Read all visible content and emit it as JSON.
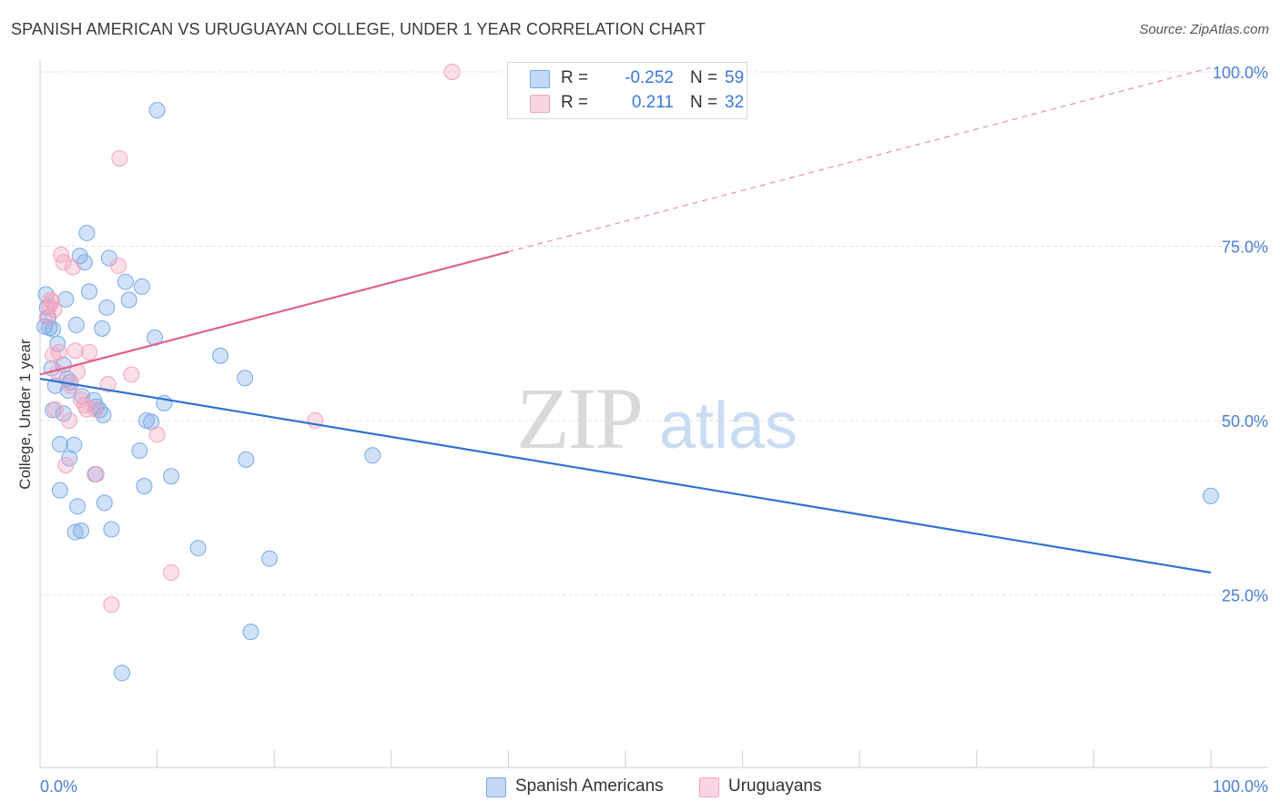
{
  "header": {
    "title": "SPANISH AMERICAN VS URUGUAYAN COLLEGE, UNDER 1 YEAR CORRELATION CHART",
    "source": "Source: ZipAtlas.com"
  },
  "watermark": {
    "zip": "ZIP",
    "atlas": "atlas"
  },
  "stats_legend": [
    {
      "r_label": "R =",
      "r_value": "-0.252",
      "n_label": "N =",
      "n_value": "59",
      "color": "#7aaae8"
    },
    {
      "r_label": "R =",
      "r_value": "0.211",
      "n_label": "N =",
      "n_value": "32",
      "color": "#f4a3bd"
    }
  ],
  "bottom_legend": [
    {
      "label": "Spanish Americans",
      "color": "#7aaae8"
    },
    {
      "label": "Uruguayans",
      "color": "#f4a3bd"
    }
  ],
  "chart_data": {
    "type": "scatter",
    "xlabel": "",
    "ylabel": "College, Under 1 year",
    "xlim": [
      0,
      100
    ],
    "ylim": [
      0,
      105
    ],
    "x_tick_labels": [
      {
        "value": 0,
        "label": "0.0%"
      },
      {
        "value": 100,
        "label": "100.0%"
      }
    ],
    "x_minor_ticks": [
      10,
      20,
      30,
      40,
      50,
      60,
      70,
      80,
      90,
      100
    ],
    "y_tick_labels": [
      {
        "value": 25,
        "label": "25.0%"
      },
      {
        "value": 50,
        "label": "50.0%"
      },
      {
        "value": 75,
        "label": "75.0%"
      },
      {
        "value": 100,
        "label": "100.0%"
      }
    ],
    "grid": true,
    "series": [
      {
        "name": "Spanish Americans",
        "color": "#7aaae8",
        "line_color": "#2e72d2",
        "r": -0.252,
        "n": 59,
        "trend": {
          "x0": 0,
          "y0": 56,
          "x1": 100,
          "y1": 28.2
        },
        "points": [
          [
            0.4,
            63.5
          ],
          [
            0.5,
            68.1
          ],
          [
            0.6,
            66.2
          ],
          [
            0.7,
            64.8
          ],
          [
            0.8,
            63.3
          ],
          [
            1.0,
            57.5
          ],
          [
            1.1,
            51.5
          ],
          [
            1.3,
            55.0
          ],
          [
            1.5,
            61.0
          ],
          [
            1.7,
            46.6
          ],
          [
            1.7,
            40.0
          ],
          [
            2.0,
            51.0
          ],
          [
            2.2,
            67.4
          ],
          [
            2.3,
            56.0
          ],
          [
            2.4,
            54.3
          ],
          [
            2.5,
            44.6
          ],
          [
            2.6,
            55.5
          ],
          [
            2.9,
            46.5
          ],
          [
            3.0,
            34.0
          ],
          [
            3.1,
            63.7
          ],
          [
            3.2,
            37.7
          ],
          [
            3.4,
            73.6
          ],
          [
            3.5,
            34.2
          ],
          [
            3.8,
            72.7
          ],
          [
            4.0,
            76.9
          ],
          [
            4.2,
            68.5
          ],
          [
            4.6,
            52.9
          ],
          [
            4.7,
            42.3
          ],
          [
            5.1,
            51.5
          ],
          [
            5.3,
            63.2
          ],
          [
            5.4,
            50.8
          ],
          [
            5.5,
            38.2
          ],
          [
            5.7,
            66.2
          ],
          [
            5.9,
            73.3
          ],
          [
            6.1,
            34.4
          ],
          [
            7.0,
            13.8
          ],
          [
            7.3,
            69.9
          ],
          [
            7.6,
            67.3
          ],
          [
            8.5,
            45.7
          ],
          [
            8.7,
            69.2
          ],
          [
            8.9,
            40.6
          ],
          [
            9.1,
            50.0
          ],
          [
            9.5,
            49.8
          ],
          [
            9.8,
            61.9
          ],
          [
            10.0,
            94.5
          ],
          [
            10.6,
            52.5
          ],
          [
            11.2,
            42.0
          ],
          [
            13.5,
            31.7
          ],
          [
            15.4,
            59.3
          ],
          [
            17.5,
            56.1
          ],
          [
            17.6,
            44.4
          ],
          [
            18.0,
            19.7
          ],
          [
            19.6,
            30.2
          ],
          [
            28.4,
            45.0
          ],
          [
            1.1,
            63.1
          ],
          [
            2.0,
            58.0
          ],
          [
            3.6,
            53.5
          ],
          [
            4.8,
            52.0
          ],
          [
            100.0,
            39.2
          ]
        ]
      },
      {
        "name": "Uruguayans",
        "color": "#f4a3bd",
        "line_color": "#e0628a",
        "r": 0.211,
        "n": 32,
        "trend": {
          "x0": 0,
          "y0": 56.6,
          "x1": 40,
          "y1": 74.2,
          "dash_x1": 100,
          "dash_y1": 100.6
        },
        "points": [
          [
            0.6,
            64.8
          ],
          [
            0.8,
            66.4
          ],
          [
            0.9,
            67.3
          ],
          [
            1.1,
            59.4
          ],
          [
            1.2,
            65.9
          ],
          [
            1.3,
            51.6
          ],
          [
            1.5,
            56.9
          ],
          [
            1.6,
            59.8
          ],
          [
            1.8,
            73.8
          ],
          [
            2.0,
            72.7
          ],
          [
            2.2,
            43.6
          ],
          [
            2.5,
            50.0
          ],
          [
            2.6,
            55.0
          ],
          [
            2.8,
            72.0
          ],
          [
            3.0,
            60.0
          ],
          [
            3.2,
            57.0
          ],
          [
            3.5,
            53.0
          ],
          [
            3.8,
            52.2
          ],
          [
            4.0,
            51.6
          ],
          [
            4.2,
            59.8
          ],
          [
            4.7,
            51.6
          ],
          [
            4.8,
            42.3
          ],
          [
            5.8,
            55.2
          ],
          [
            6.1,
            23.6
          ],
          [
            6.7,
            72.2
          ],
          [
            6.8,
            87.6
          ],
          [
            7.8,
            56.6
          ],
          [
            10.0,
            48.0
          ],
          [
            11.2,
            28.2
          ],
          [
            23.5,
            50.0
          ],
          [
            35.2,
            100.0
          ],
          [
            1.0,
            67.0
          ]
        ]
      }
    ]
  }
}
